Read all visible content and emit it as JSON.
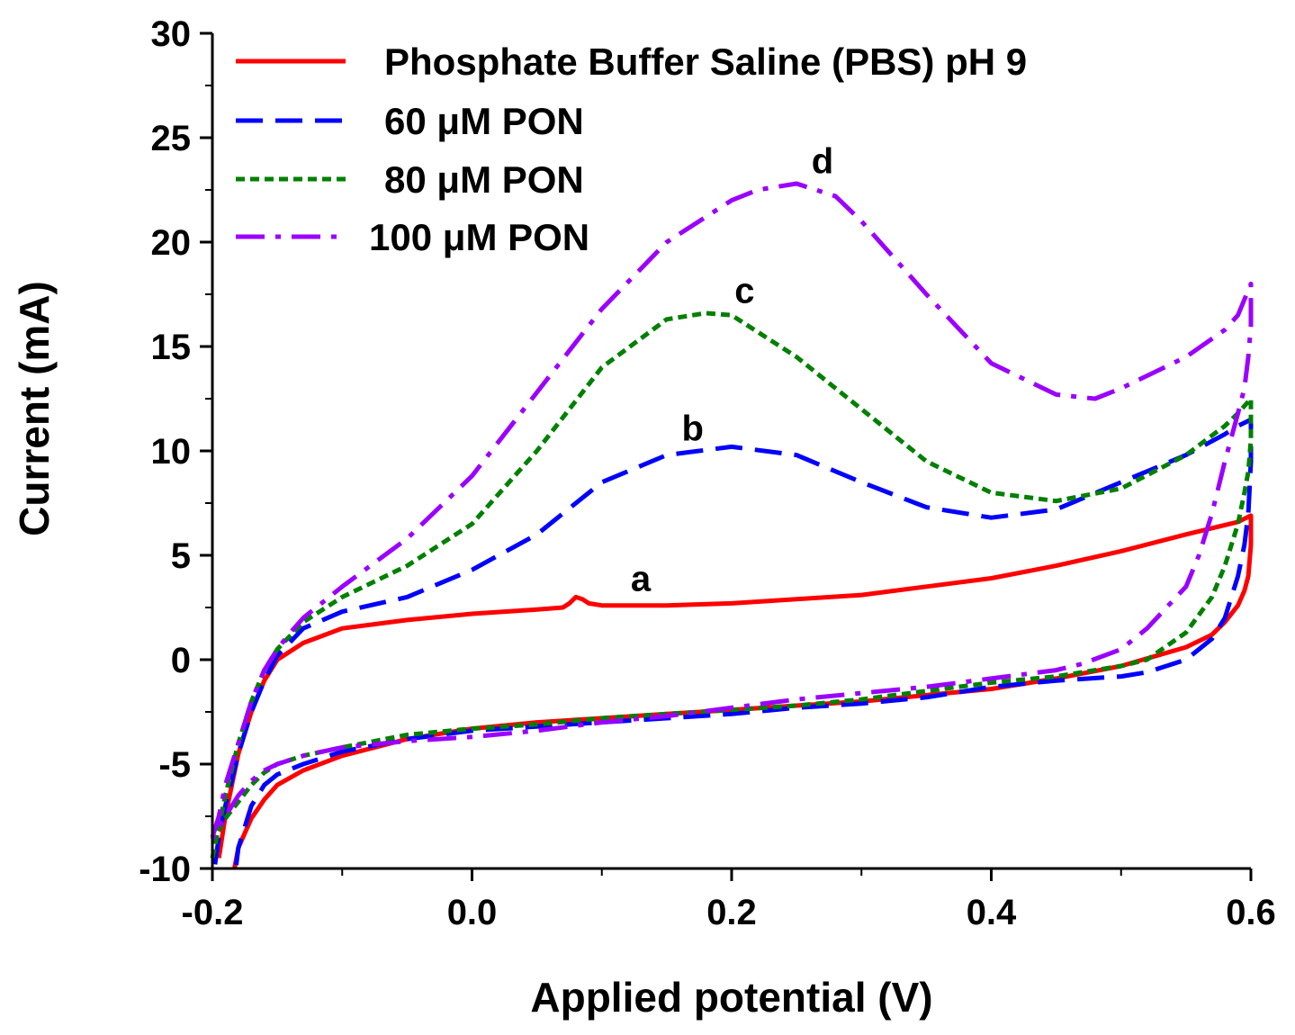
{
  "chart_data": {
    "type": "line",
    "title": "",
    "xlabel": "Applied potential (V)",
    "ylabel": "Current (mA)",
    "xlim": [
      -0.2,
      0.6
    ],
    "ylim": [
      -10,
      30
    ],
    "xticks": [
      -0.2,
      0.0,
      0.2,
      0.4,
      0.6
    ],
    "xtick_labels": [
      "-0.2",
      "0.0",
      "0.2",
      "0.4",
      "0.6"
    ],
    "yticks": [
      -10,
      -5,
      0,
      5,
      10,
      15,
      20,
      25,
      30
    ],
    "ytick_labels": [
      "-10",
      "-5",
      "0",
      "5",
      "10",
      "15",
      "20",
      "25",
      "30"
    ],
    "grid": false,
    "legend_position": "top-left",
    "series": [
      {
        "name": "Phosphate Buffer Saline (PBS) pH 9",
        "curve_label": "a",
        "label_at": [
          0.13,
          3.3
        ],
        "color": "#ff0000",
        "dash": "solid",
        "x": [
          -0.195,
          -0.19,
          -0.18,
          -0.17,
          -0.16,
          -0.15,
          -0.13,
          -0.1,
          -0.05,
          0.0,
          0.05,
          0.07,
          0.075,
          0.08,
          0.085,
          0.09,
          0.1,
          0.15,
          0.2,
          0.25,
          0.3,
          0.35,
          0.4,
          0.45,
          0.5,
          0.55,
          0.59,
          0.6,
          0.6,
          0.598,
          0.595,
          0.59,
          0.58,
          0.57,
          0.55,
          0.5,
          0.45,
          0.4,
          0.35,
          0.3,
          0.25,
          0.2,
          0.15,
          0.1,
          0.05,
          0.0,
          -0.05,
          -0.1,
          -0.13,
          -0.15,
          -0.16,
          -0.17,
          -0.18,
          -0.183
        ],
        "y": [
          -9.5,
          -7.5,
          -4.5,
          -2.5,
          -1.0,
          0.0,
          0.8,
          1.5,
          1.9,
          2.2,
          2.4,
          2.5,
          2.7,
          3.0,
          2.9,
          2.7,
          2.6,
          2.6,
          2.7,
          2.9,
          3.1,
          3.5,
          3.9,
          4.5,
          5.2,
          6.0,
          6.6,
          6.9,
          5.5,
          4.0,
          3.3,
          2.6,
          1.8,
          1.2,
          0.6,
          -0.3,
          -0.9,
          -1.4,
          -1.7,
          -2.0,
          -2.2,
          -2.4,
          -2.6,
          -2.8,
          -3.0,
          -3.3,
          -3.8,
          -4.6,
          -5.3,
          -6.0,
          -6.7,
          -7.6,
          -9.0,
          -10.0
        ]
      },
      {
        "name": "60 μM PON",
        "curve_label": "b",
        "label_at": [
          0.17,
          10.5
        ],
        "color": "#0000ff",
        "dash": "long-dash",
        "x": [
          -0.198,
          -0.195,
          -0.19,
          -0.18,
          -0.17,
          -0.16,
          -0.15,
          -0.13,
          -0.1,
          -0.05,
          0.0,
          0.05,
          0.1,
          0.15,
          0.2,
          0.25,
          0.3,
          0.35,
          0.4,
          0.45,
          0.5,
          0.55,
          0.58,
          0.59,
          0.6,
          0.6,
          0.598,
          0.595,
          0.59,
          0.58,
          0.57,
          0.55,
          0.52,
          0.5,
          0.45,
          0.4,
          0.35,
          0.3,
          0.25,
          0.2,
          0.15,
          0.1,
          0.05,
          0.0,
          -0.05,
          -0.1,
          -0.13,
          -0.15,
          -0.16,
          -0.17,
          -0.175,
          -0.18,
          -0.182
        ],
        "y": [
          -9.8,
          -8.5,
          -7.0,
          -4.5,
          -2.5,
          -1.0,
          0.2,
          1.5,
          2.3,
          3.0,
          4.3,
          6.0,
          8.5,
          9.8,
          10.2,
          9.8,
          8.5,
          7.3,
          6.8,
          7.2,
          8.5,
          9.8,
          10.8,
          11.2,
          11.5,
          9.5,
          7.0,
          5.5,
          4.0,
          2.0,
          1.0,
          0.0,
          -0.6,
          -0.8,
          -1.0,
          -1.3,
          -1.8,
          -2.1,
          -2.3,
          -2.6,
          -2.8,
          -3.0,
          -3.2,
          -3.4,
          -3.8,
          -4.4,
          -5.0,
          -5.5,
          -6.0,
          -7.0,
          -8.0,
          -9.0,
          -10.0
        ]
      },
      {
        "name": "80 μM PON",
        "curve_label": "c",
        "label_at": [
          0.21,
          17.1
        ],
        "color": "#008000",
        "dash": "short-dash",
        "x": [
          -0.2,
          -0.195,
          -0.19,
          -0.18,
          -0.17,
          -0.16,
          -0.15,
          -0.13,
          -0.1,
          -0.05,
          0.0,
          0.05,
          0.1,
          0.15,
          0.18,
          0.2,
          0.25,
          0.3,
          0.35,
          0.4,
          0.45,
          0.5,
          0.55,
          0.58,
          0.59,
          0.6,
          0.6,
          0.598,
          0.595,
          0.59,
          0.58,
          0.57,
          0.55,
          0.52,
          0.5,
          0.45,
          0.4,
          0.35,
          0.3,
          0.25,
          0.2,
          0.15,
          0.1,
          0.05,
          0.0,
          -0.05,
          -0.1,
          -0.13,
          -0.15,
          -0.16,
          -0.17,
          -0.18,
          -0.19,
          -0.198
        ],
        "y": [
          -9.5,
          -8.0,
          -6.5,
          -4.0,
          -2.0,
          -0.5,
          0.5,
          1.8,
          3.0,
          4.5,
          6.5,
          10.0,
          14.0,
          16.3,
          16.6,
          16.5,
          14.5,
          12.0,
          9.5,
          8.0,
          7.6,
          8.2,
          9.8,
          11.2,
          11.8,
          12.5,
          10.5,
          9.0,
          8.0,
          6.5,
          4.5,
          3.0,
          1.3,
          0.0,
          -0.3,
          -0.8,
          -1.1,
          -1.5,
          -1.9,
          -2.2,
          -2.4,
          -2.6,
          -2.8,
          -3.1,
          -3.3,
          -3.6,
          -4.2,
          -4.6,
          -5.0,
          -5.4,
          -6.0,
          -6.8,
          -7.6,
          -8.5
        ]
      },
      {
        "name": "100 μM PON",
        "curve_label": "d",
        "label_at": [
          0.27,
          23.3
        ],
        "color": "#9b00ff",
        "dash": "dash-dot",
        "x": [
          -0.2,
          -0.195,
          -0.19,
          -0.18,
          -0.17,
          -0.16,
          -0.15,
          -0.14,
          -0.13,
          -0.1,
          -0.05,
          0.0,
          0.05,
          0.1,
          0.15,
          0.2,
          0.22,
          0.25,
          0.28,
          0.3,
          0.35,
          0.4,
          0.45,
          0.48,
          0.5,
          0.55,
          0.58,
          0.59,
          0.6,
          0.6,
          0.598,
          0.595,
          0.59,
          0.58,
          0.57,
          0.56,
          0.55,
          0.52,
          0.5,
          0.47,
          0.45,
          0.4,
          0.35,
          0.3,
          0.25,
          0.2,
          0.15,
          0.1,
          0.05,
          0.0,
          -0.05,
          -0.1,
          -0.13,
          -0.15,
          -0.16,
          -0.17,
          -0.18,
          -0.19,
          -0.2
        ],
        "y": [
          -8.5,
          -7.5,
          -6.0,
          -4.0,
          -2.0,
          -0.5,
          0.5,
          1.3,
          2.0,
          3.5,
          5.8,
          8.8,
          12.8,
          16.8,
          20.0,
          22.0,
          22.5,
          22.8,
          22.2,
          21.0,
          17.5,
          14.2,
          12.7,
          12.5,
          13.0,
          14.5,
          15.8,
          16.5,
          18.0,
          16.0,
          14.5,
          13.0,
          11.8,
          9.5,
          7.0,
          5.0,
          3.5,
          1.5,
          0.5,
          -0.2,
          -0.5,
          -0.9,
          -1.3,
          -1.6,
          -1.9,
          -2.3,
          -2.7,
          -3.0,
          -3.4,
          -3.7,
          -3.9,
          -4.2,
          -4.6,
          -5.0,
          -5.3,
          -5.8,
          -6.5,
          -7.5,
          -8.6
        ]
      }
    ]
  }
}
